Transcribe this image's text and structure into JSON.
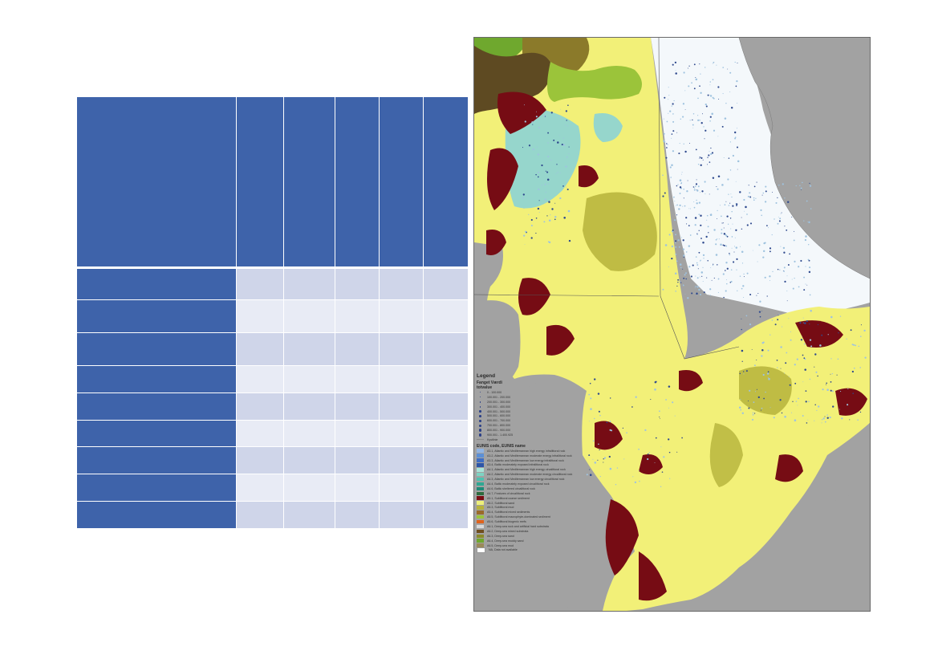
{
  "table": {
    "header": [
      "",
      "",
      "",
      "",
      "",
      ""
    ],
    "rows": [
      [
        "",
        "",
        "",
        "",
        "",
        ""
      ],
      [
        "",
        "",
        "",
        "",
        "",
        ""
      ],
      [
        "",
        "",
        "",
        "",
        "",
        ""
      ],
      [
        "",
        "",
        "",
        "",
        "",
        ""
      ],
      [
        "",
        "",
        "",
        "",
        "",
        ""
      ],
      [
        "",
        "",
        "",
        "",
        "",
        ""
      ],
      [
        "",
        "",
        "",
        "",
        "",
        ""
      ],
      [
        "",
        "",
        "",
        "",
        "",
        ""
      ],
      [
        "",
        "",
        "",
        "",
        "",
        ""
      ]
    ]
  },
  "map": {
    "legend": {
      "title": "Legend",
      "layer_title": "Fanget Værdi",
      "layer_field": "totvalue",
      "value_classes": [
        "0 - 100.000",
        "100.001 - 200.000",
        "200.001 - 300.000",
        "300.001 - 400.000",
        "400.001 - 500.000",
        "500.001 - 600.000",
        "600.001 - 700.000",
        "700.001 - 800.000",
        "800.001 - 900.000",
        "900.001 - 1.400.925"
      ],
      "footer_item": "Kystlinie",
      "eunis_title": "EUNIS code, EUNIS name",
      "eunis_classes": [
        {
          "label": "A3.1, Atlantic and Mediterranean high energy infralittoral rock",
          "color": "#8fb3e3"
        },
        {
          "label": "A3.2, Atlantic and Mediterranean moderate energy infralittoral rock",
          "color": "#5b8fd6"
        },
        {
          "label": "A3.3, Atlantic and Mediterranean low energy infralittoral rock",
          "color": "#3e6ec4"
        },
        {
          "label": "A3.4, Baltic moderately exposed infralittoral rock",
          "color": "#2c55a8"
        },
        {
          "label": "A4.1, Atlantic and Mediterranean high energy circalittoral rock",
          "color": "#a8e3d8"
        },
        {
          "label": "A4.2, Atlantic and Mediterranean moderate energy circalittoral rock",
          "color": "#7dd3c2"
        },
        {
          "label": "A4.3, Atlantic and Mediterranean low energy circalittoral rock",
          "color": "#4fbfae"
        },
        {
          "label": "A4.4, Baltic moderately exposed circalittoral rock",
          "color": "#2fa893"
        },
        {
          "label": "A4.6, Baltic sheltered circalittoral rock",
          "color": "#1f8a78"
        },
        {
          "label": "A4.7, Features of circalittoral rock",
          "color": "#2e6b3f"
        },
        {
          "label": "A5.1, Sublittoral coarse sediment",
          "color": "#7a0c12"
        },
        {
          "label": "A5.2, Sublittoral sand",
          "color": "#eef07a"
        },
        {
          "label": "A5.3, Sublittoral mud",
          "color": "#b7b23c"
        },
        {
          "label": "A5.4, Sublittoral mixed sediments",
          "color": "#9a6a2a"
        },
        {
          "label": "A5.5, Sublittoral macrophyte-dominated sediment",
          "color": "#9bc43a"
        },
        {
          "label": "A5.6, Sublittoral biogenic reefs",
          "color": "#e0631c"
        },
        {
          "label": "A6.1, Deep-sea rock and artificial hard substrata",
          "color": "#d9d9d9"
        },
        {
          "label": "A6.2, Deep-sea mixed substrata",
          "color": "#6f4e1f"
        },
        {
          "label": "A6.3, Deep-sea sand",
          "color": "#8c8a2a"
        },
        {
          "label": "A6.4, Deep-sea muddy sand",
          "color": "#6fa82e"
        },
        {
          "label": "A6.5, Deep-sea mud",
          "color": "#9a8a5a"
        },
        {
          "label": "NA, Data not available",
          "color": "#ffffff"
        }
      ]
    },
    "colors": {
      "land": "#a2a2a2",
      "sand": "#f2f078",
      "coarse": "#760c14",
      "mud": "#b9b63e",
      "rock": "#96d6cc",
      "deep_green": "#6f8f2a",
      "deep_brown": "#5e4a22",
      "water": "#f4f8fb",
      "fishing": "#2f4a8e"
    }
  }
}
